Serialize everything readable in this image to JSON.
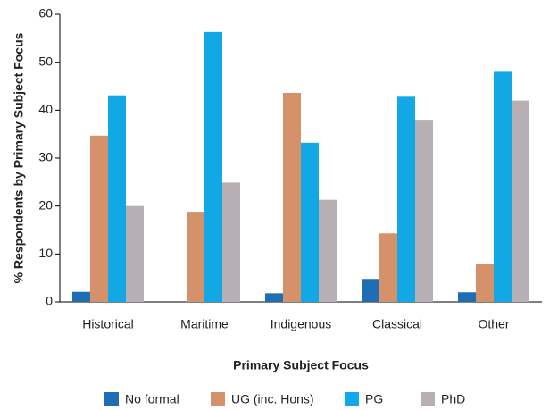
{
  "chart_data": {
    "type": "bar",
    "x_label": "Primary Subject Focus",
    "y_label": "% Respondents by Primary Subject Focus",
    "categories": [
      "Historical",
      "Maritime",
      "Indigenous",
      "Classical",
      "Other"
    ],
    "series": [
      {
        "name": "No formal",
        "color": "#1f6db3",
        "values": [
          2.1,
          0,
          1.8,
          4.8,
          2.0
        ]
      },
      {
        "name": "UG (inc. Hons)",
        "color": "#d4916a",
        "values": [
          34.7,
          18.8,
          43.6,
          14.3,
          8.0
        ]
      },
      {
        "name": "PG",
        "color": "#12a8e6",
        "values": [
          43.1,
          56.3,
          33.2,
          42.8,
          48.0
        ]
      },
      {
        "name": "PhD",
        "color": "#b8afb4",
        "values": [
          20.0,
          24.9,
          21.3,
          38.0,
          42.0
        ]
      }
    ],
    "ylim": [
      0,
      60
    ],
    "yticks": [
      0,
      10,
      20,
      30,
      40,
      50,
      60
    ],
    "grid": false,
    "legend": "bottom"
  }
}
